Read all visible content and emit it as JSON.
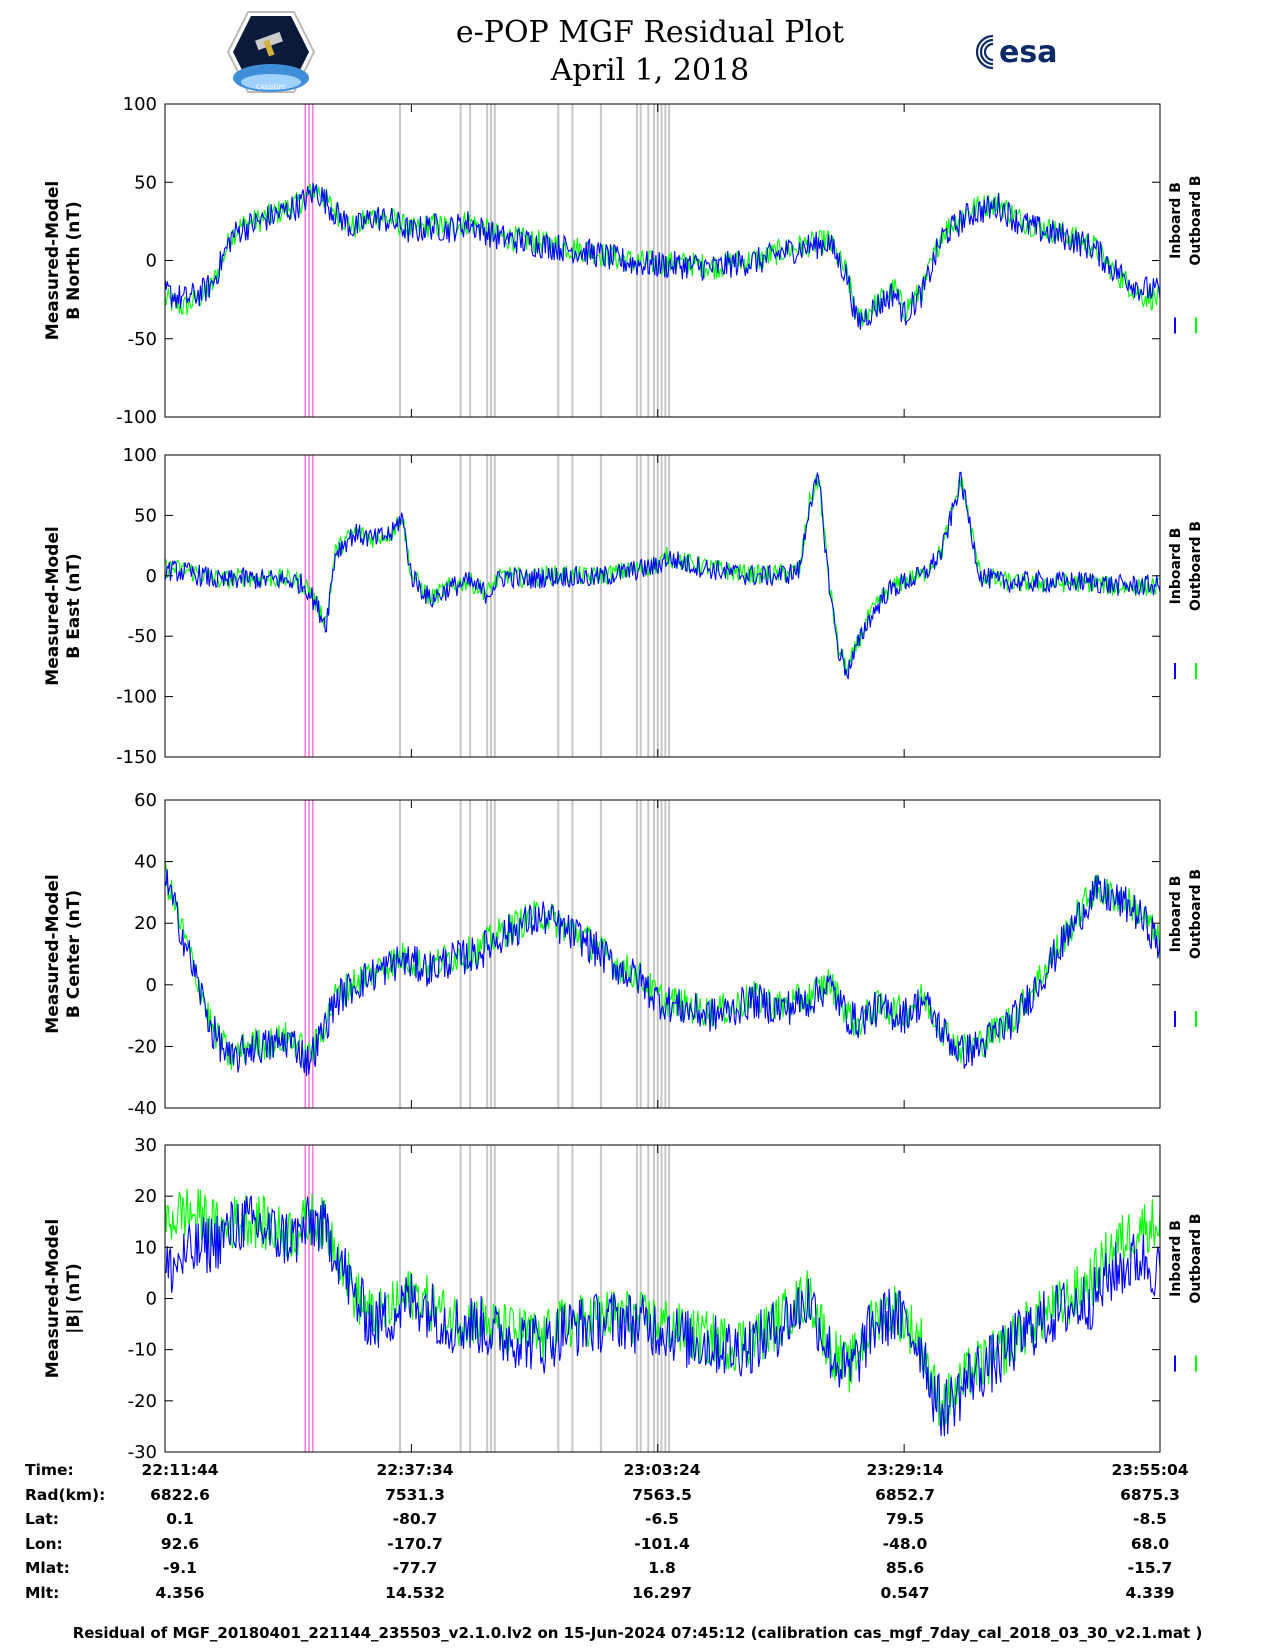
{
  "header": {
    "title_line1": "e-POP MGF Residual Plot",
    "title_line2": "April 1, 2018",
    "left_logo": "CASSIOPE",
    "right_logo": "esa"
  },
  "legend": {
    "inboard": "Inboard B",
    "outboard": "Outboard B"
  },
  "colors": {
    "inboard": "#0000ff",
    "outboard": "#00ff00",
    "pink_marker": "#ff77dd",
    "gray_marker": "#c8c8c8"
  },
  "chart_data": [
    {
      "type": "line",
      "title": "",
      "ylabel": [
        "Measured-Model",
        "B North (nT)"
      ],
      "ylim": [
        -100,
        100
      ],
      "yticks": [
        100,
        50,
        0,
        -50,
        -100
      ],
      "xlim": [
        0,
        105
      ],
      "series": [
        {
          "name": "Inboard B",
          "x": [
            0,
            2,
            4,
            5,
            7,
            8,
            10,
            12,
            14,
            16,
            18,
            20,
            22,
            24,
            26,
            28,
            30,
            32,
            35,
            38,
            40,
            42,
            45,
            48,
            50,
            53,
            55,
            58,
            60,
            63,
            65,
            67,
            69,
            70,
            72,
            73,
            75,
            77,
            78,
            80,
            82,
            84,
            85,
            88,
            90,
            92,
            95,
            98,
            100,
            103,
            105
          ],
          "y": [
            -20,
            -25,
            -20,
            -15,
            15,
            20,
            25,
            30,
            35,
            45,
            30,
            20,
            28,
            25,
            18,
            22,
            20,
            24,
            15,
            12,
            10,
            8,
            5,
            0,
            -2,
            -3,
            -3,
            -5,
            -2,
            0,
            5,
            8,
            10,
            12,
            -10,
            -40,
            -30,
            -20,
            -35,
            -20,
            15,
            25,
            30,
            35,
            25,
            20,
            15,
            8,
            -5,
            -18,
            -20
          ]
        },
        {
          "name": "Outboard B",
          "x": [
            0,
            2,
            4,
            5,
            7,
            8,
            10,
            12,
            14,
            16,
            18,
            20,
            22,
            24,
            26,
            28,
            30,
            32,
            35,
            38,
            40,
            42,
            45,
            48,
            50,
            53,
            55,
            58,
            60,
            63,
            65,
            67,
            69,
            70,
            72,
            73,
            75,
            77,
            78,
            80,
            82,
            84,
            85,
            88,
            90,
            92,
            95,
            98,
            100,
            103,
            105
          ],
          "y": [
            -25,
            -30,
            -22,
            -16,
            16,
            22,
            26,
            31,
            36,
            46,
            31,
            21,
            29,
            26,
            19,
            23,
            21,
            25,
            16,
            13,
            11,
            9,
            6,
            1,
            -1,
            -2,
            -2,
            -4,
            -1,
            1,
            6,
            9,
            11,
            13,
            -9,
            -38,
            -28,
            -18,
            -32,
            -18,
            18,
            28,
            33,
            37,
            27,
            22,
            17,
            9,
            -6,
            -22,
            -25
          ]
        }
      ]
    },
    {
      "type": "line",
      "title": "",
      "ylabel": [
        "Measured-Model",
        "B East (nT)"
      ],
      "ylim": [
        -150,
        100
      ],
      "yticks": [
        100,
        50,
        0,
        -50,
        -100,
        -150
      ],
      "xlim": [
        0,
        105
      ],
      "series": [
        {
          "name": "Inboard B",
          "x": [
            0,
            2,
            4,
            6,
            8,
            10,
            12,
            14,
            15,
            16,
            17,
            18,
            20,
            22,
            24,
            25,
            26,
            28,
            30,
            32,
            34,
            35,
            36,
            38,
            40,
            42,
            45,
            48,
            50,
            52,
            53,
            55,
            58,
            60,
            62,
            64,
            66,
            67,
            68,
            69,
            70,
            71,
            72,
            74,
            76,
            78,
            80,
            82,
            84,
            86,
            88,
            90,
            92,
            95,
            98,
            100,
            103,
            105
          ],
          "y": [
            5,
            3,
            0,
            -5,
            -2,
            -3,
            -3,
            -5,
            -10,
            -25,
            -40,
            20,
            35,
            30,
            35,
            50,
            0,
            -20,
            -10,
            -5,
            -15,
            -5,
            0,
            -3,
            -1,
            0,
            -2,
            2,
            5,
            8,
            15,
            10,
            5,
            2,
            0,
            0,
            2,
            5,
            60,
            80,
            0,
            -60,
            -80,
            -40,
            -15,
            -5,
            0,
            20,
            80,
            0,
            -5,
            -5,
            -5,
            -5,
            -5,
            -8,
            -8,
            -8
          ]
        },
        {
          "name": "Outboard B",
          "x": [
            0,
            2,
            4,
            6,
            8,
            10,
            12,
            14,
            15,
            16,
            17,
            18,
            20,
            22,
            24,
            25,
            26,
            28,
            30,
            32,
            34,
            35,
            36,
            38,
            40,
            42,
            45,
            48,
            50,
            52,
            53,
            55,
            58,
            60,
            62,
            64,
            66,
            67,
            68,
            69,
            70,
            71,
            72,
            74,
            76,
            78,
            80,
            82,
            84,
            86,
            88,
            90,
            92,
            95,
            98,
            100,
            103,
            105
          ],
          "y": [
            7,
            5,
            1,
            -4,
            -1,
            -2,
            -2,
            -4,
            -9,
            -24,
            -38,
            21,
            36,
            31,
            36,
            51,
            1,
            -19,
            -9,
            -4,
            -14,
            -4,
            1,
            -2,
            0,
            1,
            -1,
            3,
            6,
            9,
            16,
            11,
            6,
            3,
            1,
            1,
            3,
            6,
            61,
            81,
            1,
            -58,
            -78,
            -38,
            -14,
            -4,
            1,
            21,
            81,
            1,
            -4,
            -6,
            -6,
            -6,
            -6,
            -9,
            -9,
            -9
          ]
        }
      ]
    },
    {
      "type": "line",
      "title": "",
      "ylabel": [
        "Measured-Model",
        "B Center (nT)"
      ],
      "ylim": [
        -40,
        60
      ],
      "yticks": [
        60,
        40,
        20,
        0,
        -20,
        -40
      ],
      "xlim": [
        0,
        105
      ],
      "series": [
        {
          "name": "Inboard B",
          "x": [
            0,
            1,
            3,
            5,
            7,
            9,
            11,
            13,
            14,
            15,
            16,
            18,
            20,
            23,
            25,
            28,
            30,
            33,
            35,
            38,
            40,
            42,
            44,
            46,
            48,
            50,
            52,
            55,
            58,
            60,
            62,
            65,
            68,
            70,
            72,
            73,
            75,
            78,
            80,
            82,
            84,
            86,
            88,
            90,
            92,
            94,
            96,
            98,
            100,
            102,
            104,
            105
          ],
          "y": [
            35,
            25,
            5,
            -15,
            -25,
            -20,
            -20,
            -18,
            -20,
            -25,
            -20,
            -5,
            0,
            5,
            8,
            5,
            8,
            10,
            15,
            20,
            22,
            18,
            15,
            10,
            5,
            2,
            -5,
            -8,
            -10,
            -8,
            -5,
            -8,
            -5,
            0,
            -10,
            -12,
            -8,
            -10,
            -5,
            -15,
            -22,
            -20,
            -15,
            -10,
            0,
            10,
            20,
            30,
            28,
            25,
            18,
            12
          ]
        },
        {
          "name": "Outboard B",
          "x": [
            0,
            1,
            3,
            5,
            7,
            9,
            11,
            13,
            14,
            15,
            16,
            18,
            20,
            23,
            25,
            28,
            30,
            33,
            35,
            38,
            40,
            42,
            44,
            46,
            48,
            50,
            52,
            55,
            58,
            60,
            62,
            65,
            68,
            70,
            72,
            73,
            75,
            78,
            80,
            82,
            84,
            86,
            88,
            90,
            92,
            94,
            96,
            98,
            100,
            102,
            104,
            105
          ],
          "y": [
            36,
            26,
            6,
            -14,
            -24,
            -19,
            -19,
            -17,
            -19,
            -24,
            -19,
            -4,
            1,
            6,
            9,
            6,
            9,
            11,
            16,
            21,
            23,
            19,
            16,
            11,
            6,
            3,
            -4,
            -7,
            -9,
            -7,
            -4,
            -7,
            -4,
            1,
            -9,
            -13,
            -7,
            -9,
            -4,
            -14,
            -21,
            -19,
            -14,
            -9,
            1,
            11,
            21,
            31,
            29,
            26,
            19,
            13
          ]
        }
      ]
    },
    {
      "type": "line",
      "title": "",
      "ylabel": [
        "Measured-Model",
        "|B| (nT)"
      ],
      "ylim": [
        -30,
        30
      ],
      "yticks": [
        30,
        20,
        10,
        0,
        -10,
        -20,
        -30
      ],
      "xlim": [
        0,
        105
      ],
      "series": [
        {
          "name": "Inboard B",
          "x": [
            0,
            2,
            4,
            6,
            8,
            10,
            12,
            14,
            15,
            16,
            18,
            20,
            22,
            24,
            26,
            28,
            30,
            33,
            35,
            38,
            40,
            42,
            45,
            48,
            50,
            53,
            55,
            58,
            60,
            63,
            65,
            68,
            70,
            72,
            73,
            74,
            75,
            77,
            78,
            80,
            81,
            82,
            83,
            84,
            85,
            88,
            90,
            92,
            95,
            98,
            100,
            103,
            105
          ],
          "y": [
            5,
            8,
            10,
            12,
            15,
            14,
            12,
            12,
            14,
            15,
            10,
            0,
            -5,
            -3,
            0,
            -2,
            -5,
            -5,
            -7,
            -8,
            -9,
            -6,
            -5,
            -4,
            -5,
            -6,
            -8,
            -9,
            -10,
            -8,
            -5,
            0,
            -10,
            -15,
            -12,
            -8,
            -5,
            -3,
            -5,
            -10,
            -18,
            -22,
            -20,
            -18,
            -15,
            -12,
            -8,
            -5,
            -2,
            0,
            5,
            8,
            5
          ]
        },
        {
          "name": "Outboard B",
          "x": [
            0,
            2,
            4,
            6,
            8,
            10,
            12,
            14,
            15,
            16,
            18,
            20,
            22,
            24,
            26,
            28,
            30,
            33,
            35,
            38,
            40,
            42,
            45,
            48,
            50,
            53,
            55,
            58,
            60,
            63,
            65,
            68,
            70,
            72,
            73,
            74,
            75,
            77,
            78,
            80,
            81,
            82,
            83,
            84,
            85,
            88,
            90,
            92,
            95,
            98,
            100,
            103,
            105
          ],
          "y": [
            15,
            17,
            16,
            13,
            16,
            15,
            13,
            13,
            15,
            16,
            11,
            1,
            -4,
            -2,
            1,
            -1,
            -4,
            -4,
            -6,
            -7,
            -8,
            -5,
            -4,
            -3,
            -4,
            -5,
            -7,
            -8,
            -9,
            -7,
            -4,
            1,
            -9,
            -14,
            -11,
            -7,
            -4,
            -2,
            -4,
            -9,
            -17,
            -21,
            -19,
            -17,
            -14,
            -11,
            -7,
            -4,
            -1,
            4,
            10,
            14,
            15
          ]
        }
      ]
    }
  ],
  "markers": {
    "pink_x": [
      14.8,
      15.2,
      15.6
    ],
    "gray_x": [
      24.8,
      31.2,
      32.2,
      34.0,
      34.4,
      34.8,
      41.5,
      43.0,
      46.0,
      49.8,
      50.2,
      51.0,
      51.6,
      52.0,
      52.4,
      52.8,
      53.2
    ]
  },
  "x_axis": {
    "ticks": [
      26.0,
      52.0,
      78.0
    ],
    "columns": [
      {
        "time": "22:11:44",
        "rad": "6822.6",
        "lat": "0.1",
        "lon": "92.6",
        "mlat": "-9.1",
        "mlt": "4.356"
      },
      {
        "time": "22:37:34",
        "rad": "7531.3",
        "lat": "-80.7",
        "lon": "-170.7",
        "mlat": "-77.7",
        "mlt": "14.532"
      },
      {
        "time": "23:03:24",
        "rad": "7563.5",
        "lat": "-6.5",
        "lon": "-101.4",
        "mlat": "1.8",
        "mlt": "16.297"
      },
      {
        "time": "23:29:14",
        "rad": "6852.7",
        "lat": "79.5",
        "lon": "-48.0",
        "mlat": "85.6",
        "mlt": "0.547"
      },
      {
        "time": "23:55:04",
        "rad": "6875.3",
        "lat": "-8.5",
        "lon": "68.0",
        "mlat": "-15.7",
        "mlt": "4.339"
      }
    ],
    "row_labels": {
      "time": "Time:",
      "rad": "Rad(km):",
      "lat": "Lat:",
      "lon": "Lon:",
      "mlat": "Mlat:",
      "mlt": "Mlt:"
    }
  },
  "footer": "Residual of MGF_20180401_221144_235503_v2.1.0.lv2 on 15-Jun-2024 07:45:12 (calibration cas_mgf_7day_cal_2018_03_30_v2.1.mat )"
}
